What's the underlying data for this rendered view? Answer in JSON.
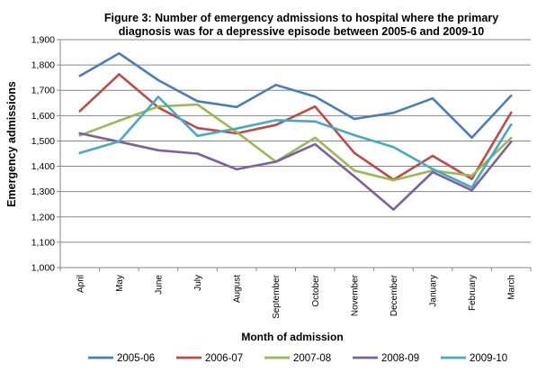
{
  "chart_data": {
    "type": "line",
    "title_line1": "Figure 3: Number of emergency admissions  to hospital where the primary",
    "title_line2": "diagnosis was for a depressive  episode between 2005-6  and 2009-10",
    "xlabel": "Month of admission",
    "ylabel": "Emergency  admissions",
    "ylim": [
      1000,
      1900
    ],
    "yticks": [
      1000,
      1100,
      1200,
      1300,
      1400,
      1500,
      1600,
      1700,
      1800,
      1900
    ],
    "ytick_labels": [
      "1,000",
      "1,100",
      "1,200",
      "1,300",
      "1,400",
      "1,500",
      "1,600",
      "1,700",
      "1,800",
      "1,900"
    ],
    "grid": true,
    "legend_position": "bottom",
    "categories": [
      "April",
      "May",
      "June",
      "July",
      "August",
      "September",
      "October",
      "November",
      "December",
      "January",
      "February",
      "March"
    ],
    "series": [
      {
        "name": "2005-06",
        "color": "#4a7ebb",
        "values": [
          1757,
          1846,
          1740,
          1657,
          1634,
          1721,
          1675,
          1587,
          1611,
          1668,
          1513,
          1679
        ]
      },
      {
        "name": "2006-07",
        "color": "#be4b48",
        "values": [
          1618,
          1763,
          1632,
          1551,
          1530,
          1563,
          1636,
          1453,
          1347,
          1441,
          1350,
          1612
        ]
      },
      {
        "name": "2007-08",
        "color": "#98b954",
        "values": [
          1522,
          1580,
          1636,
          1644,
          1535,
          1418,
          1513,
          1383,
          1345,
          1383,
          1363,
          1512
        ]
      },
      {
        "name": "2008-09",
        "color": "#7d60a0",
        "values": [
          1530,
          1497,
          1463,
          1450,
          1388,
          1418,
          1487,
          1360,
          1229,
          1377,
          1305,
          1497
        ]
      },
      {
        "name": "2009-10",
        "color": "#46aac5",
        "values": [
          1453,
          1498,
          1674,
          1520,
          1549,
          1582,
          1577,
          1523,
          1476,
          1389,
          1317,
          1565
        ]
      }
    ]
  }
}
